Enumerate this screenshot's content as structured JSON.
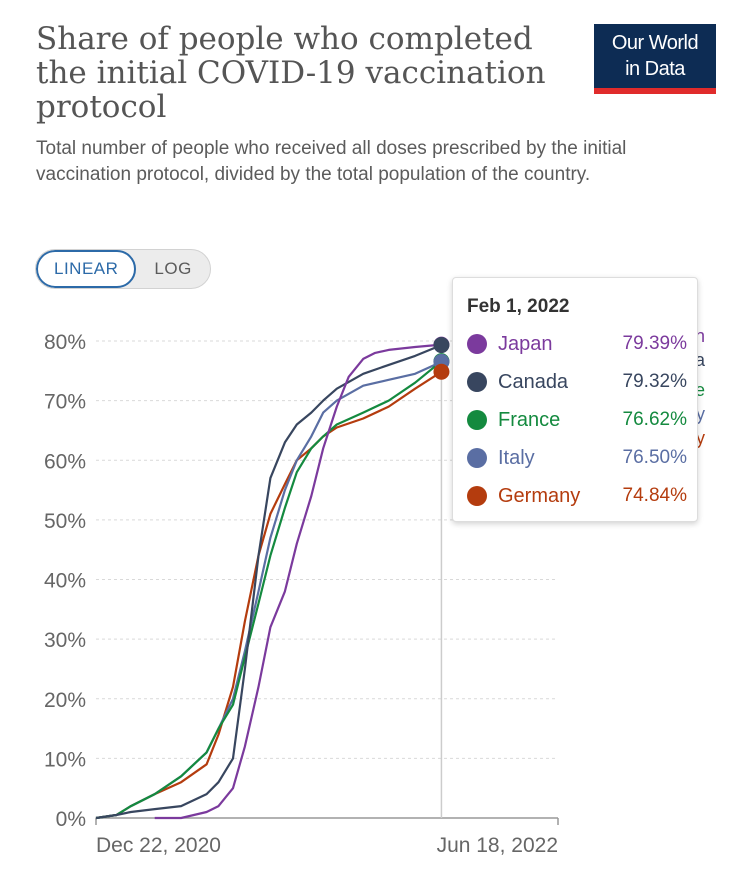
{
  "header": {
    "title": "Share of people who completed the initial COVID-19 vaccination protocol",
    "subtitle": "Total number of people who received all doses prescribed by the initial vaccination protocol, divided by the total population of the country.",
    "logo_line1": "Our World",
    "logo_line2": "in Data"
  },
  "scale_toggle": {
    "linear_label": "LINEAR",
    "log_label": "LOG",
    "active": "linear"
  },
  "tooltip": {
    "date": "Feb 1, 2022",
    "rows": [
      {
        "name": "Japan",
        "value": "79.39%",
        "color": "#7b3a9d"
      },
      {
        "name": "Canada",
        "value": "79.32%",
        "color": "#38465f"
      },
      {
        "name": "France",
        "value": "76.62%",
        "color": "#148a3f"
      },
      {
        "name": "Italy",
        "value": "76.50%",
        "color": "#5a6ea3"
      },
      {
        "name": "Germany",
        "value": "74.84%",
        "color": "#b43c0e"
      }
    ]
  },
  "chart_data": {
    "type": "line",
    "title": "Share of people who completed the initial COVID-19 vaccination protocol",
    "xlabel": "",
    "ylabel": "",
    "x_ticks": [
      "Dec 22, 2020",
      "Jun 18, 2022"
    ],
    "xlim": [
      "2020-12-22",
      "2022-06-18"
    ],
    "y_ticks": [
      "0%",
      "10%",
      "20%",
      "30%",
      "40%",
      "50%",
      "60%",
      "70%",
      "80%"
    ],
    "ylim": [
      0,
      80
    ],
    "grid": "horizontal dashed",
    "hover_date": "2022-02-01",
    "series": [
      {
        "name": "Japan",
        "color": "#7b3a9d",
        "points": [
          [
            "2021-03-01",
            0
          ],
          [
            "2021-04-01",
            0
          ],
          [
            "2021-05-01",
            1
          ],
          [
            "2021-05-15",
            2
          ],
          [
            "2021-06-01",
            5
          ],
          [
            "2021-06-15",
            12
          ],
          [
            "2021-07-01",
            22
          ],
          [
            "2021-07-15",
            32
          ],
          [
            "2021-08-01",
            38
          ],
          [
            "2021-08-15",
            46
          ],
          [
            "2021-09-01",
            54
          ],
          [
            "2021-09-15",
            62
          ],
          [
            "2021-10-01",
            69
          ],
          [
            "2021-10-15",
            74
          ],
          [
            "2021-11-01",
            77
          ],
          [
            "2021-11-15",
            78
          ],
          [
            "2021-12-01",
            78.5
          ],
          [
            "2022-01-01",
            79
          ],
          [
            "2022-02-01",
            79.39
          ]
        ]
      },
      {
        "name": "Canada",
        "color": "#38465f",
        "points": [
          [
            "2020-12-22",
            0
          ],
          [
            "2021-01-15",
            0.5
          ],
          [
            "2021-02-01",
            1
          ],
          [
            "2021-03-01",
            1.5
          ],
          [
            "2021-04-01",
            2
          ],
          [
            "2021-05-01",
            4
          ],
          [
            "2021-05-15",
            6
          ],
          [
            "2021-06-01",
            10
          ],
          [
            "2021-06-15",
            25
          ],
          [
            "2021-07-01",
            44
          ],
          [
            "2021-07-15",
            57
          ],
          [
            "2021-08-01",
            63
          ],
          [
            "2021-08-15",
            66
          ],
          [
            "2021-09-01",
            68
          ],
          [
            "2021-09-15",
            70
          ],
          [
            "2021-10-01",
            72
          ],
          [
            "2021-11-01",
            74.5
          ],
          [
            "2021-12-01",
            76
          ],
          [
            "2022-01-01",
            77.5
          ],
          [
            "2022-02-01",
            79.32
          ]
        ]
      },
      {
        "name": "France",
        "color": "#148a3f",
        "points": [
          [
            "2020-12-22",
            0
          ],
          [
            "2021-01-15",
            0.5
          ],
          [
            "2021-02-01",
            2
          ],
          [
            "2021-03-01",
            4
          ],
          [
            "2021-04-01",
            7
          ],
          [
            "2021-05-01",
            11
          ],
          [
            "2021-05-15",
            15
          ],
          [
            "2021-06-01",
            19
          ],
          [
            "2021-06-15",
            27
          ],
          [
            "2021-07-01",
            36
          ],
          [
            "2021-07-15",
            44
          ],
          [
            "2021-08-01",
            52
          ],
          [
            "2021-08-15",
            58
          ],
          [
            "2021-09-01",
            62
          ],
          [
            "2021-09-15",
            64
          ],
          [
            "2021-10-01",
            66
          ],
          [
            "2021-11-01",
            68
          ],
          [
            "2021-12-01",
            70
          ],
          [
            "2022-01-01",
            73
          ],
          [
            "2022-02-01",
            76.62
          ]
        ]
      },
      {
        "name": "Italy",
        "color": "#5a6ea3",
        "points": [
          [
            "2020-12-22",
            0
          ],
          [
            "2021-01-15",
            0.5
          ],
          [
            "2021-02-01",
            2
          ],
          [
            "2021-03-01",
            4
          ],
          [
            "2021-04-01",
            7
          ],
          [
            "2021-05-01",
            11
          ],
          [
            "2021-05-15",
            15
          ],
          [
            "2021-06-01",
            20
          ],
          [
            "2021-06-15",
            28
          ],
          [
            "2021-07-01",
            38
          ],
          [
            "2021-07-15",
            47
          ],
          [
            "2021-08-01",
            55
          ],
          [
            "2021-08-15",
            60
          ],
          [
            "2021-09-01",
            64
          ],
          [
            "2021-09-15",
            68
          ],
          [
            "2021-10-01",
            70
          ],
          [
            "2021-11-01",
            72.5
          ],
          [
            "2021-12-01",
            73.5
          ],
          [
            "2022-01-01",
            74.5
          ],
          [
            "2022-02-01",
            76.5
          ]
        ]
      },
      {
        "name": "Germany",
        "color": "#b43c0e",
        "points": [
          [
            "2020-12-22",
            0
          ],
          [
            "2021-01-15",
            0.5
          ],
          [
            "2021-02-01",
            2
          ],
          [
            "2021-03-01",
            4
          ],
          [
            "2021-04-01",
            6
          ],
          [
            "2021-05-01",
            9
          ],
          [
            "2021-05-15",
            14
          ],
          [
            "2021-06-01",
            22
          ],
          [
            "2021-06-15",
            33
          ],
          [
            "2021-07-01",
            44
          ],
          [
            "2021-07-15",
            51
          ],
          [
            "2021-08-01",
            56
          ],
          [
            "2021-08-15",
            60
          ],
          [
            "2021-09-01",
            62
          ],
          [
            "2021-09-15",
            64
          ],
          [
            "2021-10-01",
            65.5
          ],
          [
            "2021-11-01",
            67
          ],
          [
            "2021-12-01",
            69
          ],
          [
            "2022-01-01",
            72
          ],
          [
            "2022-02-01",
            74.84
          ]
        ]
      }
    ],
    "hidden_labels": [
      "Japan",
      "Canada",
      "France",
      "Italy",
      "Germany"
    ]
  }
}
